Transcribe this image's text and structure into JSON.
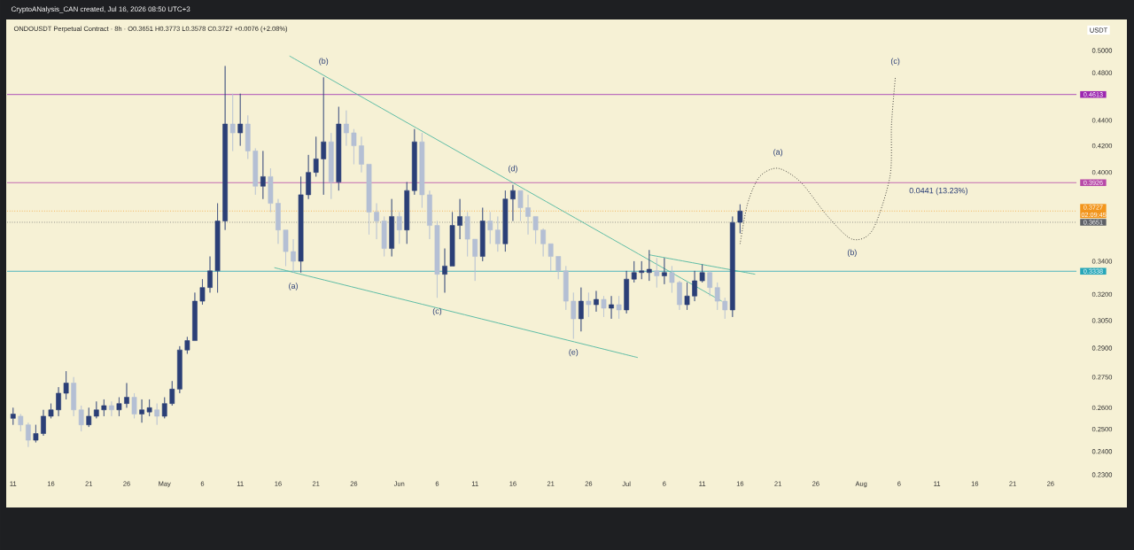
{
  "chart_data": {
    "type": "candlestick",
    "title": "ONDOUSDT Perpetual Contract · 8h · O0.3651 H0.3773 L0.3578 C0.3727 +0.0076 (+2.08%)",
    "ylabel": "USDT",
    "x": [
      "2026-04-11",
      "2026-04-12",
      "2026-04-13",
      "2026-04-14",
      "2026-04-15",
      "2026-04-16",
      "2026-04-17",
      "2026-04-18",
      "2026-04-19",
      "2026-04-20",
      "2026-04-21",
      "2026-04-22",
      "2026-04-23",
      "2026-04-24",
      "2026-04-25",
      "2026-04-26",
      "2026-04-27",
      "2026-04-28",
      "2026-04-29",
      "2026-04-30",
      "2026-05-01",
      "2026-05-02",
      "2026-05-03",
      "2026-05-04",
      "2026-05-05",
      "2026-05-06",
      "2026-05-07",
      "2026-05-08",
      "2026-05-09",
      "2026-05-10",
      "2026-05-11",
      "2026-05-12",
      "2026-05-13",
      "2026-05-14",
      "2026-05-15",
      "2026-05-16",
      "2026-05-17",
      "2026-05-18",
      "2026-05-19",
      "2026-05-20",
      "2026-05-21",
      "2026-05-22",
      "2026-05-23",
      "2026-05-24",
      "2026-05-25",
      "2026-05-26",
      "2026-05-27",
      "2026-05-28",
      "2026-05-29",
      "2026-05-30",
      "2026-05-31",
      "2026-06-01",
      "2026-06-02",
      "2026-06-03",
      "2026-06-04",
      "2026-06-05",
      "2026-06-06",
      "2026-06-07",
      "2026-06-08",
      "2026-06-09",
      "2026-06-10",
      "2026-06-11",
      "2026-06-12",
      "2026-06-13",
      "2026-06-14",
      "2026-06-15",
      "2026-06-16",
      "2026-06-17",
      "2026-06-18",
      "2026-06-19",
      "2026-06-20",
      "2026-06-21",
      "2026-06-22",
      "2026-06-23",
      "2026-06-24",
      "2026-06-25",
      "2026-06-26",
      "2026-06-27",
      "2026-06-28",
      "2026-06-29",
      "2026-06-30",
      "2026-07-01",
      "2026-07-02",
      "2026-07-03",
      "2026-07-04",
      "2026-07-05",
      "2026-07-06",
      "2026-07-07",
      "2026-07-08",
      "2026-07-09",
      "2026-07-10",
      "2026-07-11",
      "2026-07-12",
      "2026-07-13",
      "2026-07-14",
      "2026-07-15",
      "2026-07-16"
    ],
    "ohlc": [
      [
        0.255,
        0.26,
        0.252,
        0.257
      ],
      [
        0.256,
        0.257,
        0.249,
        0.252
      ],
      [
        0.252,
        0.253,
        0.242,
        0.245
      ],
      [
        0.245,
        0.252,
        0.244,
        0.248
      ],
      [
        0.248,
        0.259,
        0.247,
        0.256
      ],
      [
        0.256,
        0.262,
        0.255,
        0.259
      ],
      [
        0.259,
        0.27,
        0.256,
        0.267
      ],
      [
        0.267,
        0.278,
        0.264,
        0.272
      ],
      [
        0.272,
        0.275,
        0.256,
        0.259
      ],
      [
        0.259,
        0.261,
        0.249,
        0.252
      ],
      [
        0.252,
        0.26,
        0.251,
        0.256
      ],
      [
        0.256,
        0.263,
        0.255,
        0.259
      ],
      [
        0.259,
        0.264,
        0.256,
        0.261
      ],
      [
        0.261,
        0.263,
        0.256,
        0.259
      ],
      [
        0.259,
        0.265,
        0.256,
        0.262
      ],
      [
        0.262,
        0.272,
        0.26,
        0.265
      ],
      [
        0.265,
        0.267,
        0.255,
        0.257
      ],
      [
        0.257,
        0.264,
        0.253,
        0.259
      ],
      [
        0.258,
        0.264,
        0.256,
        0.26
      ],
      [
        0.259,
        0.262,
        0.252,
        0.256
      ],
      [
        0.256,
        0.265,
        0.255,
        0.262
      ],
      [
        0.262,
        0.273,
        0.261,
        0.269
      ],
      [
        0.269,
        0.291,
        0.267,
        0.289
      ],
      [
        0.289,
        0.296,
        0.287,
        0.294
      ],
      [
        0.294,
        0.321,
        0.294,
        0.316
      ],
      [
        0.316,
        0.329,
        0.314,
        0.324
      ],
      [
        0.324,
        0.343,
        0.321,
        0.334
      ],
      [
        0.334,
        0.378,
        0.321,
        0.366
      ],
      [
        0.366,
        0.486,
        0.36,
        0.437
      ],
      [
        0.437,
        0.462,
        0.416,
        0.43
      ],
      [
        0.43,
        0.462,
        0.42,
        0.437
      ],
      [
        0.437,
        0.444,
        0.41,
        0.416
      ],
      [
        0.416,
        0.418,
        0.384,
        0.39
      ],
      [
        0.39,
        0.416,
        0.381,
        0.397
      ],
      [
        0.397,
        0.403,
        0.372,
        0.378
      ],
      [
        0.378,
        0.381,
        0.351,
        0.36
      ],
      [
        0.36,
        0.36,
        0.337,
        0.346
      ],
      [
        0.346,
        0.354,
        0.333,
        0.34
      ],
      [
        0.34,
        0.397,
        0.333,
        0.384
      ],
      [
        0.384,
        0.413,
        0.381,
        0.4
      ],
      [
        0.4,
        0.427,
        0.397,
        0.41
      ],
      [
        0.41,
        0.476,
        0.384,
        0.423
      ],
      [
        0.423,
        0.43,
        0.381,
        0.393
      ],
      [
        0.393,
        0.451,
        0.387,
        0.437
      ],
      [
        0.437,
        0.448,
        0.42,
        0.43
      ],
      [
        0.43,
        0.433,
        0.406,
        0.42
      ],
      [
        0.42,
        0.427,
        0.4,
        0.406
      ],
      [
        0.406,
        0.406,
        0.357,
        0.372
      ],
      [
        0.372,
        0.378,
        0.354,
        0.366
      ],
      [
        0.366,
        0.369,
        0.343,
        0.348
      ],
      [
        0.348,
        0.381,
        0.343,
        0.369
      ],
      [
        0.369,
        0.372,
        0.351,
        0.36
      ],
      [
        0.36,
        0.393,
        0.351,
        0.387
      ],
      [
        0.387,
        0.433,
        0.384,
        0.423
      ],
      [
        0.423,
        0.43,
        0.375,
        0.384
      ],
      [
        0.384,
        0.387,
        0.354,
        0.363
      ],
      [
        0.363,
        0.366,
        0.318,
        0.332
      ],
      [
        0.332,
        0.348,
        0.321,
        0.337
      ],
      [
        0.337,
        0.372,
        0.337,
        0.363
      ],
      [
        0.363,
        0.381,
        0.354,
        0.369
      ],
      [
        0.369,
        0.372,
        0.343,
        0.354
      ],
      [
        0.354,
        0.354,
        0.328,
        0.343
      ],
      [
        0.343,
        0.375,
        0.34,
        0.366
      ],
      [
        0.366,
        0.372,
        0.351,
        0.36
      ],
      [
        0.36,
        0.369,
        0.346,
        0.351
      ],
      [
        0.351,
        0.387,
        0.346,
        0.381
      ],
      [
        0.381,
        0.391,
        0.366,
        0.387
      ],
      [
        0.387,
        0.387,
        0.366,
        0.375
      ],
      [
        0.375,
        0.384,
        0.357,
        0.369
      ],
      [
        0.369,
        0.369,
        0.351,
        0.36
      ],
      [
        0.36,
        0.361,
        0.343,
        0.351
      ],
      [
        0.351,
        0.351,
        0.334,
        0.343
      ],
      [
        0.343,
        0.343,
        0.329,
        0.334
      ],
      [
        0.334,
        0.337,
        0.311,
        0.316
      ],
      [
        0.316,
        0.321,
        0.295,
        0.306
      ],
      [
        0.306,
        0.324,
        0.299,
        0.316
      ],
      [
        0.316,
        0.321,
        0.307,
        0.314
      ],
      [
        0.314,
        0.322,
        0.31,
        0.317
      ],
      [
        0.317,
        0.319,
        0.307,
        0.312
      ],
      [
        0.312,
        0.319,
        0.306,
        0.314
      ],
      [
        0.314,
        0.319,
        0.306,
        0.311
      ],
      [
        0.311,
        0.334,
        0.309,
        0.329
      ],
      [
        0.329,
        0.34,
        0.327,
        0.333
      ],
      [
        0.333,
        0.34,
        0.329,
        0.334
      ],
      [
        0.333,
        0.347,
        0.328,
        0.335
      ],
      [
        0.334,
        0.342,
        0.324,
        0.331
      ],
      [
        0.331,
        0.342,
        0.326,
        0.333
      ],
      [
        0.333,
        0.337,
        0.321,
        0.327
      ],
      [
        0.327,
        0.328,
        0.311,
        0.314
      ],
      [
        0.314,
        0.327,
        0.311,
        0.319
      ],
      [
        0.319,
        0.334,
        0.316,
        0.328
      ],
      [
        0.328,
        0.338,
        0.327,
        0.333
      ],
      [
        0.333,
        0.334,
        0.319,
        0.324
      ],
      [
        0.324,
        0.327,
        0.311,
        0.316
      ],
      [
        0.316,
        0.318,
        0.306,
        0.311
      ],
      [
        0.311,
        0.369,
        0.307,
        0.365
      ],
      [
        0.3651,
        0.3773,
        0.3578,
        0.3727
      ]
    ],
    "colors": [
      "#2b3f77",
      "#b4bfd4",
      "#b4bfd4",
      "#2b3f77",
      "#2b3f77",
      "#2b3f77",
      "#2b3f77",
      "#2b3f77",
      "#b4bfd4",
      "#b4bfd4",
      "#2b3f77",
      "#2b3f77",
      "#2b3f77",
      "#b4bfd4",
      "#2b3f77",
      "#2b3f77",
      "#b4bfd4",
      "#2b3f77",
      "#2b3f77",
      "#b4bfd4",
      "#2b3f77",
      "#2b3f77",
      "#2b3f77",
      "#2b3f77",
      "#2b3f77",
      "#2b3f77",
      "#2b3f77",
      "#2b3f77",
      "#2b3f77",
      "#b4bfd4",
      "#2b3f77",
      "#b4bfd4",
      "#b4bfd4",
      "#2b3f77",
      "#b4bfd4",
      "#b4bfd4",
      "#b4bfd4",
      "#b4bfd4",
      "#2b3f77",
      "#2b3f77",
      "#2b3f77",
      "#2b3f77",
      "#b4bfd4",
      "#2b3f77",
      "#b4bfd4",
      "#b4bfd4",
      "#b4bfd4",
      "#b4bfd4",
      "#b4bfd4",
      "#b4bfd4",
      "#2b3f77",
      "#b4bfd4",
      "#2b3f77",
      "#2b3f77",
      "#b4bfd4",
      "#b4bfd4",
      "#b4bfd4",
      "#2b3f77",
      "#2b3f77",
      "#2b3f77",
      "#b4bfd4",
      "#b4bfd4",
      "#2b3f77",
      "#b4bfd4",
      "#b4bfd4",
      "#2b3f77",
      "#2b3f77",
      "#b4bfd4",
      "#b4bfd4",
      "#b4bfd4",
      "#b4bfd4",
      "#b4bfd4",
      "#b4bfd4",
      "#b4bfd4",
      "#b4bfd4",
      "#2b3f77",
      "#b4bfd4",
      "#2b3f77",
      "#b4bfd4",
      "#2b3f77",
      "#b4bfd4",
      "#2b3f77",
      "#2b3f77",
      "#2b3f77",
      "#2b3f77",
      "#b4bfd4",
      "#2b3f77",
      "#b4bfd4",
      "#b4bfd4",
      "#2b3f77",
      "#2b3f77",
      "#2b3f77",
      "#b4bfd4",
      "#b4bfd4",
      "#b4bfd4",
      "#2b3f77",
      "#2b3f77"
    ],
    "series": [
      {
        "type": "line",
        "color": "#4db6a0",
        "line_style": "solid",
        "x": [
          "2026-05-17T12:00",
          "2026-07-13T14:00"
        ],
        "values": [
          0.495,
          0.316
        ]
      },
      {
        "type": "line",
        "color": "#4db6a0",
        "line_style": "solid",
        "x": [
          "2026-07-04",
          "2026-07-18"
        ],
        "values": [
          0.344,
          0.332
        ]
      },
      {
        "type": "line",
        "color": "#4db6a0",
        "line_style": "solid",
        "x": [
          "2026-05-15T12:00",
          "2026-07-02T12:00"
        ],
        "values": [
          0.336,
          0.285
        ]
      },
      {
        "type": "line",
        "color": "#222222",
        "line_style": "dotted",
        "x": [
          "2026-07-16",
          "2026-07-17",
          "2026-07-18T14:00",
          "2026-07-21",
          "2026-07-24",
          "2026-07-27T14:00",
          "2026-07-30T19:00",
          "2026-08-02T12:00",
          "2026-08-04T19:00",
          "2026-08-05",
          "2026-08-05T12:00"
        ],
        "values": [
          0.351,
          0.378,
          0.397,
          0.403,
          0.393,
          0.369,
          0.354,
          0.36,
          0.397,
          0.437,
          0.476
        ]
      }
    ],
    "ref_lines": [
      {
        "axis": "y",
        "value": 0.4613,
        "label": "0.4613",
        "color": "#9c27b0"
      },
      {
        "axis": "y",
        "value": 0.3926,
        "label": "0.3926",
        "color": "#b84aa8"
      },
      {
        "axis": "y",
        "value": 0.3338,
        "label": "0.3338",
        "color": "#26a6b8"
      },
      {
        "axis": "y",
        "value": 0.3727,
        "label": "0.3727 02:09:45",
        "color": "#f2951c",
        "line_style": "dotted"
      },
      {
        "axis": "y",
        "value": 0.3651,
        "label": "0.3651",
        "color": "#5d6066",
        "line_style": "dotted"
      }
    ],
    "annotations": [
      "CryptoANalysis_CAN created, Jul 16, 2026 08:50 UTC+3",
      {
        "text": "(a)",
        "x": "2026-05-18",
        "y": 0.333
      },
      {
        "text": "(b)",
        "x": "2026-05-22",
        "y": 0.476
      },
      {
        "text": "(c)",
        "x": "2026-06-06",
        "y": 0.318
      },
      {
        "text": "(d)",
        "x": "2026-06-16",
        "y": 0.391
      },
      {
        "text": "(e)",
        "x": "2026-06-24",
        "y": 0.295
      },
      {
        "text": "(a)",
        "x": "2026-07-21",
        "y": 0.403
      },
      {
        "text": "(b)",
        "x": "2026-07-30T19:00",
        "y": 0.354
      },
      {
        "text": "(c)",
        "x": "2026-08-05T12:00",
        "y": 0.476
      },
      {
        "text": "0.0441 (13.23%)",
        "x": "2026-08-11T05:00",
        "y": 0.3926
      }
    ],
    "log": "y",
    "xlim": [
      "2026-04-10T05:00",
      "2026-08-29T10:00"
    ],
    "ylim": [
      0.23,
      0.5
    ],
    "xticks": [
      {
        "value": "2026-04-11",
        "label": "11"
      },
      {
        "value": "2026-04-16",
        "label": "16"
      },
      {
        "value": "2026-04-21",
        "label": "21"
      },
      {
        "value": "2026-04-26",
        "label": "26"
      },
      {
        "value": "2026-05-01",
        "label": "May"
      },
      {
        "value": "2026-05-06",
        "label": "6"
      },
      {
        "value": "2026-05-11",
        "label": "11"
      },
      {
        "value": "2026-05-16",
        "label": "16"
      },
      {
        "value": "2026-05-21",
        "label": "21"
      },
      {
        "value": "2026-05-26",
        "label": "26"
      },
      {
        "value": "2026-06-01",
        "label": "Jun"
      },
      {
        "value": "2026-06-06",
        "label": "6"
      },
      {
        "value": "2026-06-11",
        "label": "11"
      },
      {
        "value": "2026-06-16",
        "label": "16"
      },
      {
        "value": "2026-06-21",
        "label": "21"
      },
      {
        "value": "2026-06-26",
        "label": "26"
      },
      {
        "value": "2026-07-01",
        "label": "Jul"
      },
      {
        "value": "2026-07-06",
        "label": "6"
      },
      {
        "value": "2026-07-11",
        "label": "11"
      },
      {
        "value": "2026-07-16",
        "label": "16"
      },
      {
        "value": "2026-07-21",
        "label": "21"
      },
      {
        "value": "2026-07-26",
        "label": "26"
      },
      {
        "value": "2026-08-01",
        "label": "Aug"
      },
      {
        "value": "2026-08-06",
        "label": "6"
      },
      {
        "value": "2026-08-11",
        "label": "11"
      },
      {
        "value": "2026-08-16",
        "label": "16"
      },
      {
        "value": "2026-08-21",
        "label": "21"
      },
      {
        "value": "2026-08-26",
        "label": "26"
      }
    ],
    "yticks": [
      {
        "value": 0.23,
        "label": "0.2300"
      },
      {
        "value": 0.24,
        "label": "0.2400"
      },
      {
        "value": 0.25,
        "label": "0.2500"
      },
      {
        "value": 0.26,
        "label": "0.2600"
      },
      {
        "value": 0.275,
        "label": "0.2750"
      },
      {
        "value": 0.29,
        "label": "0.2900"
      },
      {
        "value": 0.305,
        "label": "0.3050"
      },
      {
        "value": 0.32,
        "label": "0.3200"
      },
      {
        "value": 0.34,
        "label": "0.3400"
      },
      {
        "value": 0.4,
        "label": "0.4000"
      },
      {
        "value": 0.42,
        "label": "0.4200"
      },
      {
        "value": 0.44,
        "label": "0.4400"
      },
      {
        "value": 0.48,
        "label": "0.4800"
      },
      {
        "value": 0.5,
        "label": "0.5000"
      }
    ]
  }
}
